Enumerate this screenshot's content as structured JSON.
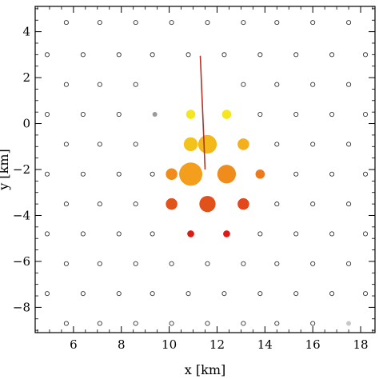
{
  "chart_data": {
    "type": "scatter",
    "title": "",
    "xlabel": "x [km]",
    "ylabel": "y [km]",
    "xlim": [
      4.4,
      18.6
    ],
    "ylim": [
      -9.1,
      5.1
    ],
    "x_ticks": [
      6,
      8,
      10,
      12,
      14,
      16,
      18
    ],
    "y_ticks": [
      4,
      2,
      0,
      -2,
      -4,
      -6,
      -8
    ],
    "grid": false,
    "legend": "none",
    "stations": {
      "marker": "open-circle",
      "rows": [
        {
          "y": 4.4,
          "x": [
            5.7,
            7.1,
            8.6,
            10.1,
            11.6,
            13.1,
            14.5,
            16.0,
            17.5
          ]
        },
        {
          "y": 3.0,
          "x": [
            4.9,
            6.4,
            7.9,
            9.3,
            10.8,
            12.3,
            13.8,
            15.3,
            16.8,
            18.2
          ]
        },
        {
          "y": 1.7,
          "x": [
            5.7,
            7.1,
            8.6,
            13.1,
            14.5,
            16.0,
            17.5
          ]
        },
        {
          "y": 0.4,
          "x": [
            4.9,
            6.4,
            7.9,
            13.8,
            15.3,
            16.8,
            18.2
          ]
        },
        {
          "y": -0.9,
          "x": [
            5.7,
            7.1,
            8.6,
            14.5,
            16.0,
            17.5
          ]
        },
        {
          "y": -2.2,
          "x": [
            4.9,
            6.4,
            7.9,
            9.3,
            15.3,
            16.8,
            18.2
          ]
        },
        {
          "y": -3.5,
          "x": [
            5.7,
            7.1,
            8.6,
            14.5,
            16.0,
            17.5
          ]
        },
        {
          "y": -4.8,
          "x": [
            4.9,
            6.4,
            7.9,
            9.3,
            13.8,
            15.3,
            16.8,
            18.2
          ]
        },
        {
          "y": -6.1,
          "x": [
            5.7,
            7.1,
            8.6,
            10.1,
            11.6,
            13.1,
            14.5,
            16.0,
            17.5
          ]
        },
        {
          "y": -7.4,
          "x": [
            4.9,
            6.4,
            7.9,
            9.3,
            10.8,
            12.3,
            13.8,
            15.3,
            16.8,
            18.2
          ]
        },
        {
          "y": -8.7,
          "x": [
            5.7,
            7.1,
            8.6,
            10.1,
            11.6,
            13.1,
            14.5,
            16.0
          ]
        }
      ]
    },
    "faded_stations": [
      {
        "x": 9.4,
        "y": 0.4,
        "color": "#9a9a9a"
      },
      {
        "x": 17.5,
        "y": -8.7,
        "color": "#c8c8c8"
      }
    ],
    "triggered_stations": [
      {
        "x": 10.9,
        "y": 0.4,
        "size": 2,
        "color": "#f5e61f"
      },
      {
        "x": 12.4,
        "y": 0.4,
        "size": 2,
        "color": "#f5e61f"
      },
      {
        "x": 10.9,
        "y": -0.9,
        "size": 3,
        "color": "#f3c31b"
      },
      {
        "x": 11.6,
        "y": -0.9,
        "size": 4,
        "color": "#f3b81a"
      },
      {
        "x": 13.1,
        "y": -0.9,
        "size": 2.5,
        "color": "#f3b01c"
      },
      {
        "x": 10.1,
        "y": -2.2,
        "size": 2.5,
        "color": "#f08c1c"
      },
      {
        "x": 10.9,
        "y": -2.2,
        "size": 5,
        "color": "#f39e1c"
      },
      {
        "x": 12.4,
        "y": -2.2,
        "size": 4,
        "color": "#f08c1c"
      },
      {
        "x": 13.8,
        "y": -2.2,
        "size": 2,
        "color": "#ec7a1c"
      },
      {
        "x": 10.1,
        "y": -3.5,
        "size": 2.5,
        "color": "#e2531a"
      },
      {
        "x": 11.6,
        "y": -3.5,
        "size": 3.5,
        "color": "#e0521a"
      },
      {
        "x": 13.1,
        "y": -3.5,
        "size": 2.5,
        "color": "#e3471a"
      },
      {
        "x": 10.9,
        "y": -4.8,
        "size": 1.5,
        "color": "#df1a12"
      },
      {
        "x": 12.4,
        "y": -4.8,
        "size": 1.5,
        "color": "#df1a12"
      }
    ],
    "track": {
      "x": [
        11.3,
        11.5
      ],
      "y": [
        2.95,
        -2.0
      ],
      "color": "#b4322a"
    }
  }
}
